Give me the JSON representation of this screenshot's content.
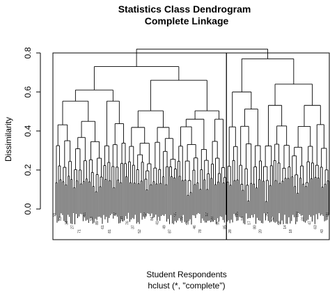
{
  "chart_data": {
    "type": "dendrogram",
    "title": "Statistics Class Dendrogram",
    "subtitle": "Complete Linkage",
    "xlabel": "Student Respondents",
    "sublabel": "hclust (*, \"complete\")",
    "ylabel": "Dissimilarity",
    "ylim": [
      0,
      0.85
    ],
    "yticks": [
      "0.0",
      "0.2",
      "0.4",
      "0.6",
      "0.8"
    ],
    "ytick_values": [
      0.0,
      0.2,
      0.4,
      0.6,
      0.8
    ],
    "root_height": 0.82,
    "cut_clusters": 2,
    "cluster_box_height": 0.8,
    "cluster_leaf_split": 125,
    "leaf_count": 200,
    "merge_heights": {
      "top_left_left": 0.73,
      "top_left_right": 0.66,
      "top_right": 0.77,
      "sub_a": 0.61,
      "sub_b": 0.52,
      "sub_c": 0.6,
      "sub_d": 0.6,
      "sub_e": 0.64,
      "sub_f": 0.58
    },
    "leaf_labels_visible": [
      "91",
      "83",
      "34",
      "27",
      "71",
      "16",
      "53",
      "89",
      "61",
      "81",
      "72",
      "101",
      "76",
      "37",
      "52",
      "62",
      "84",
      "41",
      "49",
      "87",
      "55",
      "79",
      "58",
      "46",
      "78",
      "12",
      "70",
      "95",
      "85",
      "28",
      "105",
      "10",
      "17",
      "80",
      "20",
      "25",
      "52",
      "58",
      "14",
      "18",
      "110",
      "69",
      "47",
      "63",
      "43",
      "88"
    ]
  }
}
